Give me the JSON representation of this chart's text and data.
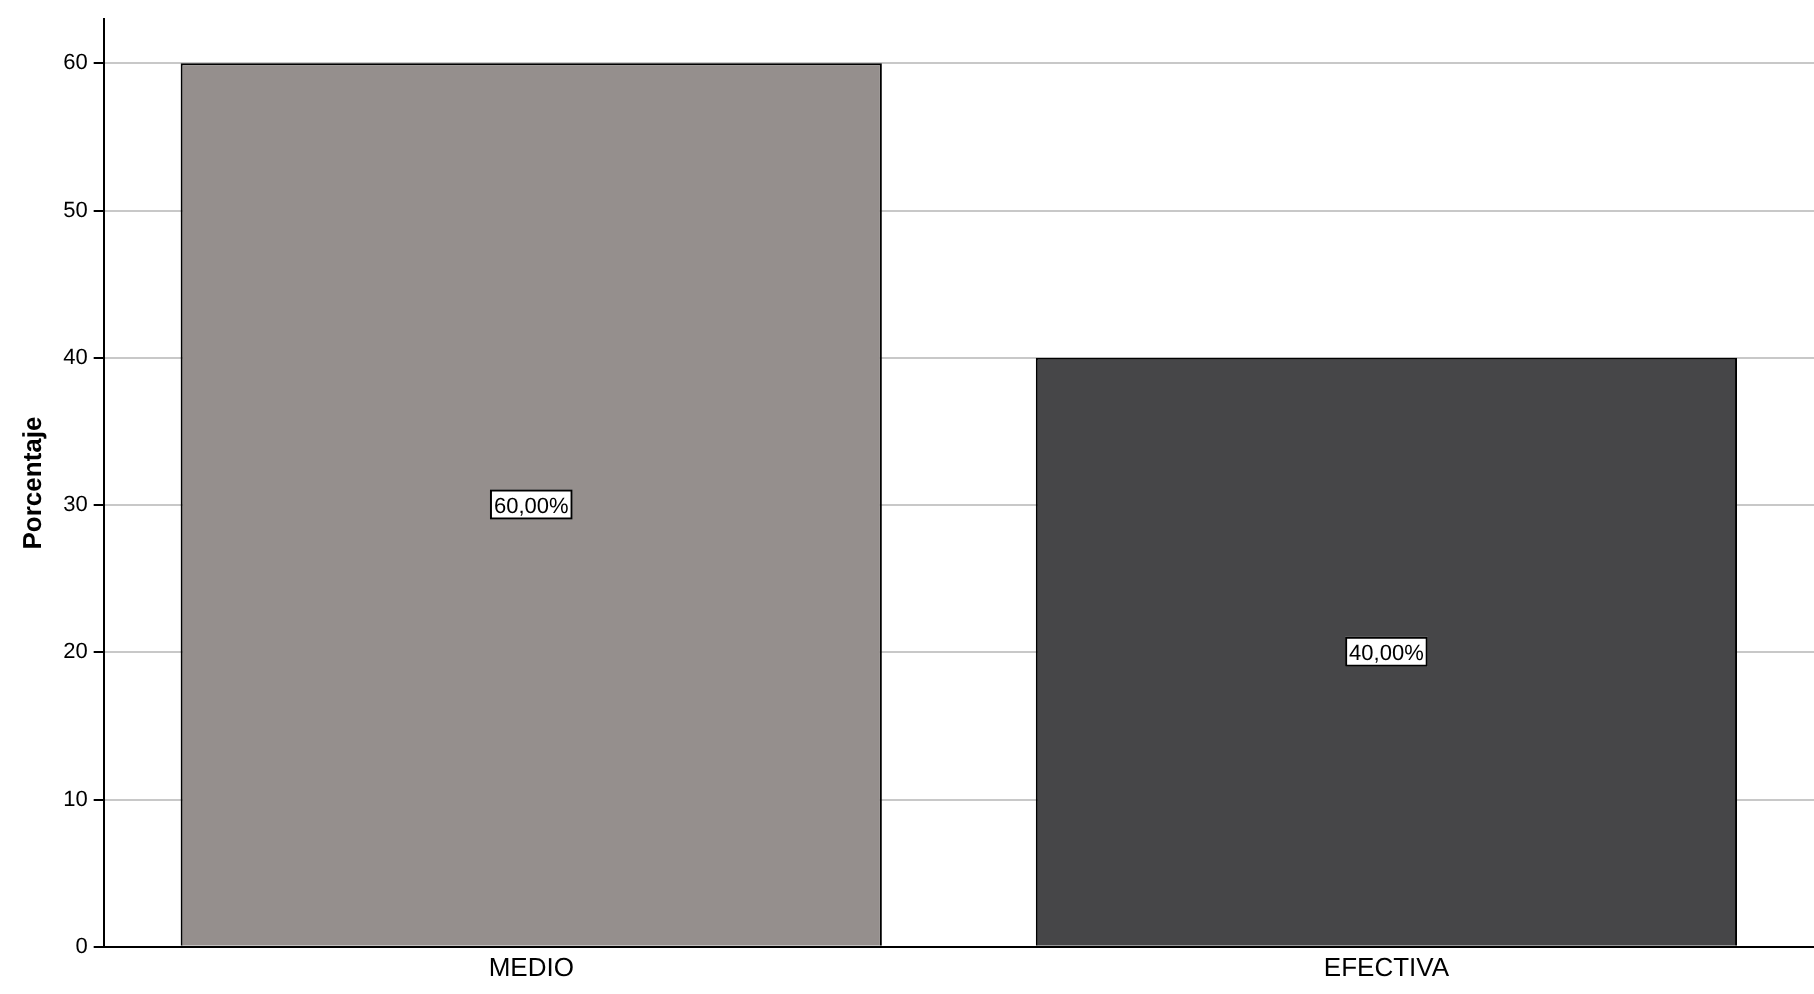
{
  "chart_data": {
    "type": "bar",
    "ylabel": "Porcentaje",
    "categories": [
      "MEDIO",
      "EFECTIVA"
    ],
    "values": [
      60,
      40
    ],
    "colors": [
      "#958f8d",
      "#464648"
    ],
    "value_labels": [
      "60,00%",
      "40,00%"
    ],
    "ylim": [
      0,
      63
    ],
    "yticks": [
      0,
      10,
      20,
      30,
      40,
      50,
      60
    ],
    "grid": "y",
    "legend": false
  }
}
